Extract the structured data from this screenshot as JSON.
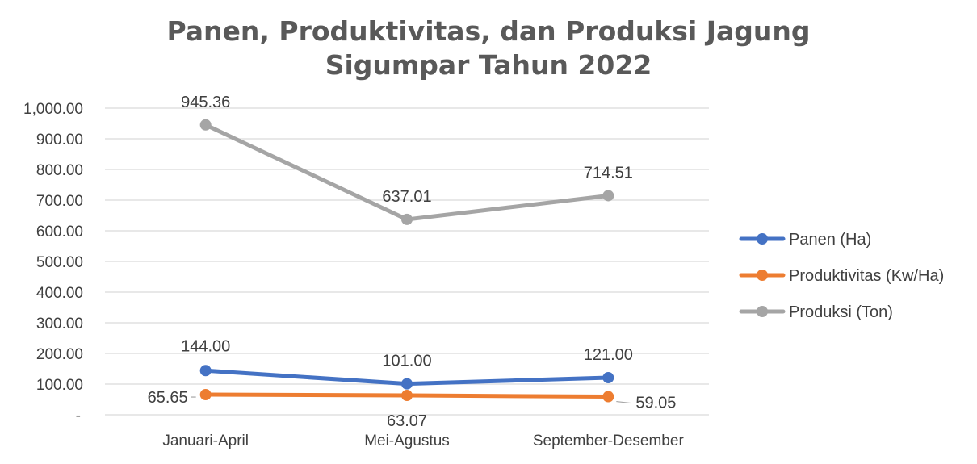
{
  "chart_data": {
    "type": "line",
    "title_line1": "Panen, Produktivitas, dan Produksi Jagung",
    "title_line2": "Sigumpar Tahun 2022",
    "categories": [
      "Januari-April",
      "Mei-Agustus",
      "September-Desember"
    ],
    "y_ticks": [
      "-",
      "100.00",
      "200.00",
      "300.00",
      "400.00",
      "500.00",
      "600.00",
      "700.00",
      "800.00",
      "900.00",
      "1,000.00"
    ],
    "ylim": [
      0,
      1000
    ],
    "grid": true,
    "legend_position": "right",
    "series": [
      {
        "name": "Panen (Ha)",
        "color": "#4472C4",
        "values": [
          144,
          101,
          121
        ],
        "labels": [
          "144.00",
          "101.00",
          "121.00"
        ]
      },
      {
        "name": "Produktivitas (Kw/Ha)",
        "color": "#ED7D31",
        "values": [
          65.65,
          63.07,
          59.05
        ],
        "labels": [
          "65.65",
          "63.07",
          "59.05"
        ]
      },
      {
        "name": "Produksi (Ton)",
        "color": "#A5A5A5",
        "values": [
          945.36,
          637.01,
          714.51
        ],
        "labels": [
          "945.36",
          "637.01",
          "714.51"
        ]
      }
    ]
  }
}
